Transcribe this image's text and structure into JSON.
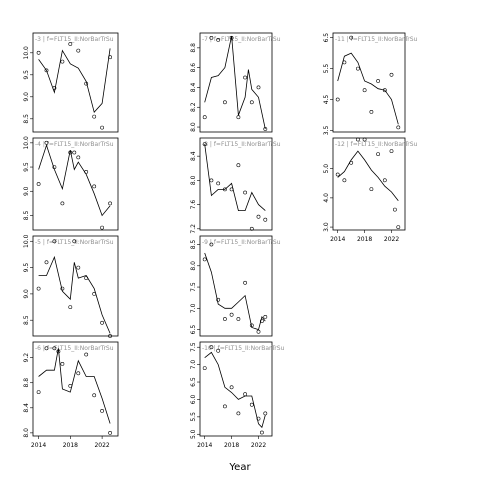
{
  "chart_data": {
    "type": "line",
    "xlabel": "Year",
    "x_ticks": [
      2014,
      2018,
      2022
    ],
    "panels": [
      {
        "label": "-3 | f=FLT15_II:NorBarTrSu",
        "y_ticks": [
          "8.5",
          "9.0",
          "9.5",
          "10.0"
        ],
        "y_tick_values": [
          8.5,
          9.0,
          9.5,
          10.0
        ],
        "ylim": [
          8.2,
          10.45
        ],
        "x": [
          2014,
          2015,
          2016,
          2017,
          2018,
          2019,
          2020,
          2021,
          2022,
          2023
        ],
        "observed": [
          10.0,
          9.6,
          9.2,
          9.8,
          10.2,
          10.05,
          9.3,
          8.55,
          8.3,
          9.9
        ],
        "fitted": [
          9.85,
          9.6,
          9.1,
          10.05,
          9.75,
          9.65,
          9.35,
          8.65,
          8.85,
          10.1
        ]
      },
      {
        "label": "-7 | f=FLT15_II:NorBarTrSu",
        "y_ticks": [
          "8.0",
          "8.2",
          "8.4",
          "8.6",
          "8.8"
        ],
        "y_tick_values": [
          8.0,
          8.2,
          8.4,
          8.6,
          8.8
        ],
        "ylim": [
          7.95,
          8.95
        ],
        "x": [
          2014,
          2015,
          2016,
          2017,
          2018,
          2019,
          2020,
          2021,
          2022,
          2023
        ],
        "observed": [
          8.1,
          8.9,
          8.88,
          8.25,
          8.9,
          8.1,
          8.5,
          8.25,
          8.4,
          7.98
        ],
        "fitted": [
          8.25,
          8.5,
          8.52,
          8.6,
          8.92,
          8.12,
          8.3,
          8.58,
          8.38,
          8.3,
          7.98
        ],
        "x_fitted": [
          2014,
          2015,
          2016,
          2017,
          2018,
          2019,
          2020,
          2020.5,
          2021,
          2022,
          2023
        ]
      },
      {
        "label": "-11 | f=FLT15_II:NorBarTrSu",
        "y_ticks": [
          "3.5",
          "4.5",
          "5.5",
          "6.5"
        ],
        "y_tick_values": [
          3.5,
          4.5,
          5.5,
          6.5
        ],
        "ylim": [
          3.45,
          6.65
        ],
        "x": [
          2014,
          2015,
          2016,
          2017,
          2018,
          2019,
          2020,
          2021,
          2022,
          2023
        ],
        "observed": [
          4.5,
          5.7,
          6.5,
          5.5,
          4.8,
          4.1,
          5.1,
          4.8,
          5.3,
          3.6
        ],
        "fitted": [
          5.1,
          5.9,
          6.0,
          5.7,
          5.1,
          5.0,
          4.85,
          4.8,
          4.5,
          3.7
        ]
      },
      {
        "label": "-4 | f=FLT15_II:NorBarTrSu",
        "y_ticks": [
          "8.5",
          "9.0",
          "9.5",
          "10.0"
        ],
        "y_tick_values": [
          8.5,
          9.0,
          9.5,
          10.0
        ],
        "ylim": [
          8.2,
          10.1
        ],
        "x": [
          2014,
          2015,
          2016,
          2017,
          2018,
          2019,
          2020,
          2021,
          2022,
          2023
        ],
        "observed": [
          9.15,
          10.0,
          9.5,
          8.75,
          9.8,
          9.8,
          9.7,
          9.4,
          9.1,
          8.25,
          8.75
        ],
        "x_observed": [
          2014,
          2015,
          2016,
          2017,
          2018,
          2018.5,
          2019,
          2020,
          2021,
          2022,
          2023
        ],
        "fitted": [
          9.45,
          9.95,
          9.45,
          9.05,
          9.85,
          9.45,
          9.6,
          9.35,
          8.95,
          8.5,
          8.7
        ],
        "x_fitted": [
          2014,
          2015,
          2016,
          2017,
          2018,
          2018.5,
          2019,
          2020,
          2021,
          2022,
          2023
        ]
      },
      {
        "label": "-8 | f=FLT15_II:NorBarTrSu",
        "y_ticks": [
          "7.2",
          "7.6",
          "8.0",
          "8.4"
        ],
        "y_tick_values": [
          7.2,
          7.6,
          8.0,
          8.4
        ],
        "ylim": [
          7.18,
          8.7
        ],
        "x": [
          2014,
          2015,
          2016,
          2017,
          2018,
          2019,
          2020,
          2021,
          2022,
          2023
        ],
        "observed": [
          8.6,
          8.0,
          7.95,
          7.85,
          7.85,
          8.25,
          7.8,
          7.2,
          7.4,
          7.35
        ],
        "fitted": [
          8.6,
          7.75,
          7.85,
          7.85,
          7.95,
          7.5,
          7.5,
          7.8,
          7.6,
          7.5
        ]
      },
      {
        "label": "-12 | f=FLT15_II:NorBarTrSu",
        "y_ticks": [
          "3.0",
          "4.0",
          "5.0"
        ],
        "y_tick_values": [
          3.0,
          4.0,
          5.0
        ],
        "ylim": [
          2.9,
          6.05
        ],
        "x": [
          2014,
          2015,
          2016,
          2017,
          2018,
          2019,
          2020,
          2021,
          2022,
          2023
        ],
        "observed": [
          4.8,
          4.6,
          5.2,
          6.0,
          6.0,
          4.3,
          5.5,
          4.6,
          5.6,
          3.6,
          3.0
        ],
        "x_observed": [
          2014,
          2015,
          2016,
          2017,
          2018,
          2019,
          2020,
          2021,
          2022,
          2022.5,
          2023
        ],
        "fitted": [
          4.7,
          4.9,
          5.3,
          5.6,
          5.3,
          4.95,
          4.7,
          4.4,
          4.2,
          3.9,
          3.4
        ]
      },
      {
        "label": "-5 | f=FLT15_II:NorBarTrSu",
        "y_ticks": [
          "8.5",
          "9.0",
          "9.5",
          "10.0"
        ],
        "y_tick_values": [
          8.5,
          9.0,
          9.5,
          10.0
        ],
        "ylim": [
          8.2,
          10.1
        ],
        "x": [
          2014,
          2015,
          2016,
          2017,
          2018,
          2019,
          2020,
          2021,
          2022,
          2023
        ],
        "observed": [
          9.1,
          9.6,
          10.0,
          9.1,
          8.75,
          10.0,
          9.5,
          9.3,
          9.0,
          8.45,
          8.2
        ],
        "x_observed": [
          2014,
          2015,
          2016,
          2017,
          2018,
          2018.5,
          2019,
          2020,
          2021,
          2022,
          2023
        ],
        "fitted": [
          9.35,
          9.35,
          9.7,
          9.05,
          8.9,
          9.6,
          9.3,
          9.35,
          9.1,
          8.6,
          8.25
        ],
        "x_fitted": [
          2014,
          2015,
          2016,
          2017,
          2018,
          2018.5,
          2019,
          2020,
          2021,
          2022,
          2023
        ]
      },
      {
        "label": "-9 | f=FLT15_II:NorBarTrSu",
        "y_ticks": [
          "6.5",
          "7.0",
          "7.5",
          "8.0",
          "8.5"
        ],
        "y_tick_values": [
          6.5,
          7.0,
          7.5,
          8.0,
          8.5
        ],
        "ylim": [
          6.35,
          8.7
        ],
        "x": [
          2014,
          2015,
          2016,
          2017,
          2018,
          2019,
          2020,
          2021,
          2022,
          2023
        ],
        "observed": [
          8.15,
          8.5,
          7.2,
          6.75,
          6.85,
          6.75,
          7.6,
          6.6,
          6.45,
          6.7,
          6.8
        ],
        "x_observed": [
          2014,
          2015,
          2016,
          2017,
          2018,
          2019,
          2020,
          2021,
          2022,
          2022.5,
          2023
        ],
        "fitted": [
          8.3,
          7.85,
          7.1,
          7.0,
          7.0,
          7.15,
          7.3,
          6.55,
          6.5,
          6.8,
          6.7
        ],
        "x_fitted": [
          2014,
          2015,
          2016,
          2017,
          2018,
          2019,
          2020,
          2021,
          2022,
          2022.5,
          2023
        ]
      },
      {
        "label": "-6 | f=FLT15_II:NorBarTrSu",
        "y_ticks": [
          "8.0",
          "8.4",
          "8.8",
          "9.2"
        ],
        "y_tick_values": [
          8.0,
          8.4,
          8.8,
          9.2
        ],
        "ylim": [
          7.95,
          9.45
        ],
        "x": [
          2014,
          2015,
          2016,
          2017,
          2018,
          2019,
          2020,
          2021,
          2022,
          2023
        ],
        "observed": [
          8.65,
          9.35,
          9.35,
          9.3,
          9.1,
          8.75,
          8.95,
          9.25,
          8.6,
          8.35,
          8.0
        ],
        "x_observed": [
          2014,
          2015,
          2016,
          2016.5,
          2017,
          2018,
          2019,
          2020,
          2021,
          2022,
          2023
        ],
        "fitted": [
          8.9,
          9.0,
          9.0,
          9.35,
          8.7,
          8.65,
          9.15,
          8.9,
          8.9,
          8.55,
          8.15
        ],
        "x_fitted": [
          2014,
          2015,
          2016,
          2016.5,
          2017,
          2018,
          2019,
          2020,
          2021,
          2022,
          2023
        ]
      },
      {
        "label": "-10 | f=FLT15_II:NorBarTrSu",
        "y_ticks": [
          "5.0",
          "5.5",
          "6.0",
          "6.5",
          "7.0",
          "7.5"
        ],
        "y_tick_values": [
          5.0,
          5.5,
          6.0,
          6.5,
          7.0,
          7.5
        ],
        "ylim": [
          4.95,
          7.65
        ],
        "x": [
          2014,
          2015,
          2016,
          2017,
          2018,
          2019,
          2020,
          2021,
          2022,
          2023
        ],
        "observed": [
          6.9,
          7.5,
          7.4,
          5.8,
          6.35,
          5.6,
          6.15,
          5.85,
          5.45,
          5.05,
          5.6
        ],
        "x_observed": [
          2014,
          2015,
          2016,
          2017,
          2018,
          2019,
          2020,
          2021,
          2022,
          2022.5,
          2023
        ],
        "fitted": [
          7.2,
          7.35,
          7.0,
          6.35,
          6.2,
          6.0,
          6.1,
          6.1,
          5.3,
          5.2,
          5.55
        ],
        "x_fitted": [
          2014,
          2015,
          2016,
          2017,
          2018,
          2019,
          2020,
          2021,
          2022,
          2022.5,
          2023
        ]
      }
    ]
  }
}
